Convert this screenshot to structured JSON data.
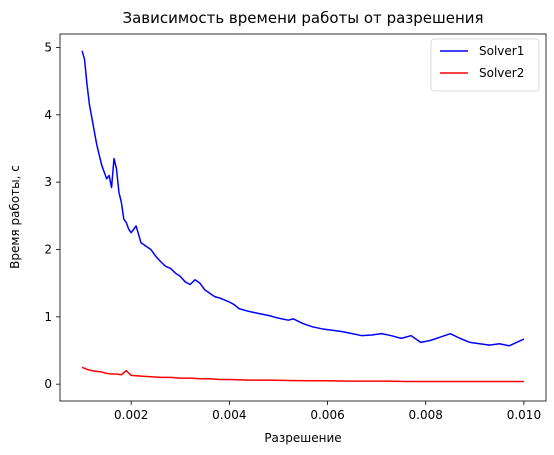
{
  "chart_data": {
    "type": "line",
    "title": "Зависимость времени работы от разрешения",
    "xlabel": "Разрешение",
    "ylabel": "Время работы, с",
    "xlim": [
      0.00055,
      0.01045
    ],
    "ylim": [
      -0.25,
      5.2
    ],
    "xticks": [
      0.002,
      0.004,
      0.006,
      0.008,
      0.01
    ],
    "xtick_labels": [
      "0.002",
      "0.004",
      "0.006",
      "0.008",
      "0.010"
    ],
    "yticks": [
      0,
      1,
      2,
      3,
      4,
      5
    ],
    "ytick_labels": [
      "0",
      "1",
      "2",
      "3",
      "4",
      "5"
    ],
    "grid": false,
    "legend": "top-right",
    "series": [
      {
        "name": "Solver1",
        "color": "#0000ff",
        "x": [
          0.001,
          0.00105,
          0.0011,
          0.00115,
          0.0012,
          0.00125,
          0.0013,
          0.00135,
          0.0014,
          0.00145,
          0.0015,
          0.00155,
          0.0016,
          0.00165,
          0.0017,
          0.00175,
          0.0018,
          0.00185,
          0.0019,
          0.00195,
          0.002,
          0.0021,
          0.0022,
          0.0023,
          0.0024,
          0.0025,
          0.0026,
          0.0027,
          0.0028,
          0.0029,
          0.003,
          0.0031,
          0.0032,
          0.0033,
          0.0034,
          0.0035,
          0.0036,
          0.0037,
          0.0038,
          0.0039,
          0.004,
          0.0041,
          0.0042,
          0.0044,
          0.0046,
          0.0048,
          0.005,
          0.0052,
          0.0053,
          0.0055,
          0.0057,
          0.0059,
          0.0061,
          0.0063,
          0.0065,
          0.0067,
          0.0069,
          0.0071,
          0.0073,
          0.0075,
          0.0077,
          0.0079,
          0.0081,
          0.0083,
          0.0085,
          0.0087,
          0.0089,
          0.0091,
          0.0093,
          0.0095,
          0.0097,
          0.01
        ],
        "y": [
          4.95,
          4.82,
          4.45,
          4.15,
          3.95,
          3.75,
          3.55,
          3.4,
          3.25,
          3.15,
          3.05,
          3.1,
          2.92,
          3.35,
          3.2,
          2.85,
          2.7,
          2.45,
          2.4,
          2.3,
          2.25,
          2.35,
          2.1,
          2.05,
          2.0,
          1.9,
          1.82,
          1.75,
          1.72,
          1.65,
          1.6,
          1.52,
          1.48,
          1.55,
          1.5,
          1.4,
          1.35,
          1.3,
          1.28,
          1.25,
          1.22,
          1.18,
          1.12,
          1.08,
          1.05,
          1.02,
          0.98,
          0.95,
          0.97,
          0.9,
          0.85,
          0.82,
          0.8,
          0.78,
          0.75,
          0.72,
          0.73,
          0.75,
          0.72,
          0.68,
          0.72,
          0.62,
          0.65,
          0.7,
          0.75,
          0.68,
          0.62,
          0.6,
          0.58,
          0.6,
          0.57,
          0.67
        ]
      },
      {
        "name": "Solver2",
        "color": "#ff0000",
        "x": [
          0.001,
          0.0011,
          0.0012,
          0.0013,
          0.0014,
          0.0015,
          0.0016,
          0.0017,
          0.0018,
          0.0019,
          0.002,
          0.0022,
          0.0024,
          0.0026,
          0.0028,
          0.003,
          0.0032,
          0.0034,
          0.0036,
          0.0038,
          0.004,
          0.0044,
          0.0048,
          0.0052,
          0.0056,
          0.006,
          0.0064,
          0.0068,
          0.0072,
          0.0076,
          0.008,
          0.0084,
          0.0088,
          0.0092,
          0.0096,
          0.01
        ],
        "y": [
          0.25,
          0.22,
          0.2,
          0.19,
          0.18,
          0.16,
          0.15,
          0.15,
          0.14,
          0.2,
          0.13,
          0.12,
          0.11,
          0.1,
          0.1,
          0.09,
          0.09,
          0.08,
          0.08,
          0.07,
          0.07,
          0.06,
          0.06,
          0.055,
          0.05,
          0.05,
          0.045,
          0.045,
          0.045,
          0.04,
          0.04,
          0.04,
          0.04,
          0.04,
          0.04,
          0.04
        ]
      }
    ]
  }
}
